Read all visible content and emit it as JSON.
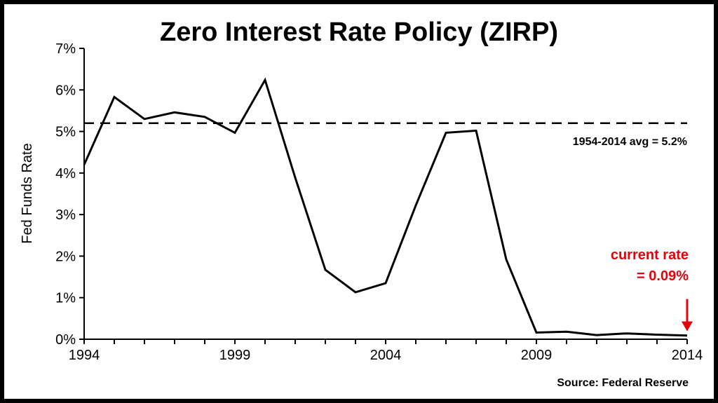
{
  "chart_data": {
    "type": "line",
    "title": "Zero Interest Rate Policy (ZIRP)",
    "ylabel": "Fed Funds Rate",
    "xlabel": "",
    "x": [
      1994,
      1995,
      1996,
      1997,
      1998,
      1999,
      2000,
      2001,
      2002,
      2003,
      2004,
      2005,
      2006,
      2007,
      2008,
      2009,
      2010,
      2011,
      2012,
      2013,
      2014
    ],
    "y": [
      4.2,
      5.83,
      5.3,
      5.46,
      5.35,
      4.97,
      6.24,
      3.89,
      1.67,
      1.13,
      1.35,
      3.22,
      4.97,
      5.02,
      1.92,
      0.16,
      0.18,
      0.1,
      0.14,
      0.11,
      0.09
    ],
    "xlim": [
      1994,
      2014
    ],
    "ylim": [
      0,
      7
    ],
    "x_ticks": [
      1994,
      1999,
      2004,
      2009,
      2014
    ],
    "x_tick_labels": [
      "1994",
      "1999",
      "2004",
      "2009",
      "2014"
    ],
    "y_ticks": [
      0,
      1,
      2,
      3,
      4,
      5,
      6,
      7
    ],
    "y_tick_labels": [
      "0%",
      "1%",
      "2%",
      "3%",
      "4%",
      "5%",
      "6%",
      "7%"
    ],
    "reference_line": {
      "value": 5.2,
      "style": "dashed",
      "label": "1954-2014 avg = 5.2%"
    },
    "callout": {
      "line1": "current rate",
      "line2": "= 0.09%",
      "color": "#e8000b",
      "target_x": 2014,
      "target_y": 0.09
    },
    "source": "Source: Federal Reserve",
    "grid": false,
    "legend": "none",
    "line_color": "#000000"
  }
}
